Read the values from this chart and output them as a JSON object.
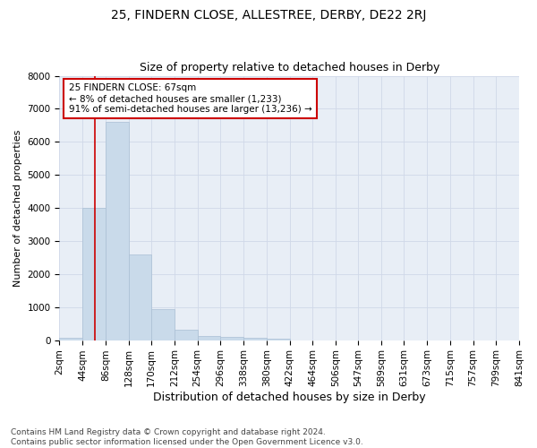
{
  "title1": "25, FINDERN CLOSE, ALLESTREE, DERBY, DE22 2RJ",
  "title2": "Size of property relative to detached houses in Derby",
  "xlabel": "Distribution of detached houses by size in Derby",
  "ylabel": "Number of detached properties",
  "bin_labels": [
    "2sqm",
    "44sqm",
    "86sqm",
    "128sqm",
    "170sqm",
    "212sqm",
    "254sqm",
    "296sqm",
    "338sqm",
    "380sqm",
    "422sqm",
    "464sqm",
    "506sqm",
    "547sqm",
    "589sqm",
    "631sqm",
    "673sqm",
    "715sqm",
    "757sqm",
    "799sqm",
    "841sqm"
  ],
  "bin_edges": [
    2,
    44,
    86,
    128,
    170,
    212,
    254,
    296,
    338,
    380,
    422,
    464,
    506,
    547,
    589,
    631,
    673,
    715,
    757,
    799,
    841
  ],
  "bar_heights": [
    80,
    4000,
    6600,
    2600,
    950,
    320,
    120,
    90,
    60,
    50,
    0,
    0,
    0,
    0,
    0,
    0,
    0,
    0,
    0,
    0
  ],
  "bar_color": "#c9daea",
  "bar_edge_color": "#aabfd4",
  "red_line_x": 67,
  "annotation_line1": "25 FINDERN CLOSE: 67sqm",
  "annotation_line2": "← 8% of detached houses are smaller (1,233)",
  "annotation_line3": "91% of semi-detached houses are larger (13,236) →",
  "annotation_box_color": "#ffffff",
  "annotation_box_edge": "#cc0000",
  "ylim": [
    0,
    8000
  ],
  "yticks": [
    0,
    1000,
    2000,
    3000,
    4000,
    5000,
    6000,
    7000,
    8000
  ],
  "grid_color": "#d0d8e8",
  "background_color": "#e8eef6",
  "footer_text": "Contains HM Land Registry data © Crown copyright and database right 2024.\nContains public sector information licensed under the Open Government Licence v3.0.",
  "title1_fontsize": 10,
  "title2_fontsize": 9,
  "xlabel_fontsize": 9,
  "ylabel_fontsize": 8,
  "tick_fontsize": 7.5,
  "annotation_fontsize": 7.5,
  "footer_fontsize": 6.5
}
